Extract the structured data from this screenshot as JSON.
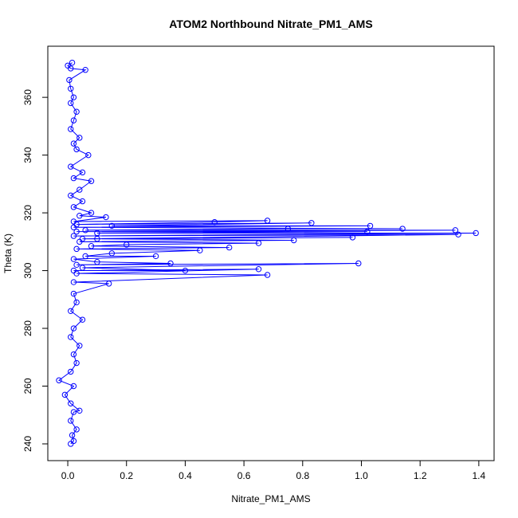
{
  "chart_data": {
    "type": "line",
    "title": "ATOM2 Northbound Nitrate_PM1_AMS",
    "xlabel": "Nitrate_PM1_AMS",
    "ylabel": "Theta (K)",
    "color": "#0000ff",
    "markers": true,
    "xlim": [
      -0.068,
      1.452
    ],
    "ylim": [
      234.2,
      377.7
    ],
    "xticks": [
      {
        "value": 0,
        "label": "0.0"
      },
      0.2,
      0.4,
      0.6,
      0.8,
      {
        "value": 1,
        "label": "1.0"
      },
      1.2,
      1.4
    ],
    "yticks": [
      240,
      260,
      280,
      300,
      320,
      340,
      360
    ],
    "x": [
      0.01,
      0.02,
      0.015,
      0.03,
      0.01,
      0.02,
      0.04,
      0.01,
      -0.01,
      0.02,
      -0.03,
      0.01,
      0.03,
      0.02,
      0.04,
      0.01,
      0.02,
      0.05,
      0.01,
      0.03,
      0.02,
      0.14,
      0.02,
      0.68,
      0.03,
      0.65,
      0.02,
      0.4,
      0.05,
      0.99,
      0.03,
      0.35,
      0.1,
      0.02,
      0.3,
      0.06,
      0.15,
      0.45,
      0.03,
      0.55,
      0.08,
      0.2,
      0.65,
      0.04,
      0.77,
      0.1,
      0.97,
      0.05,
      1.33,
      0.02,
      1.39,
      0.1,
      1.02,
      0.03,
      1.32,
      0.06,
      0.75,
      1.14,
      0.02,
      1.03,
      0.15,
      0.83,
      0.03,
      0.5,
      0.68,
      0.02,
      0.13,
      0.04,
      0.08,
      0.02,
      0.05,
      0.01,
      0.04,
      0.08,
      0.02,
      0.05,
      0.01,
      0.07,
      0.03,
      0.02,
      0.04,
      0.01,
      0.02,
      0.03,
      0.01,
      0.02,
      0.01,
      0.005,
      0.06,
      0.01,
      0,
      0.015
    ],
    "values": [
      240,
      241,
      243,
      245,
      248,
      251,
      251.5,
      254,
      257,
      260,
      262,
      265,
      268,
      271,
      274,
      277,
      280,
      283,
      286,
      289,
      292,
      295.5,
      296,
      298.5,
      299,
      300.5,
      300,
      300,
      301,
      302.5,
      302,
      302.5,
      303,
      304,
      305,
      305,
      306,
      307,
      307.5,
      308,
      308.5,
      309,
      309.5,
      310,
      310.5,
      311,
      311.5,
      311,
      312.5,
      312,
      313,
      313,
      313.5,
      313.5,
      314,
      314,
      314.5,
      314.5,
      315,
      315.5,
      315.5,
      316.5,
      316,
      316.8,
      317.3,
      317,
      318.5,
      319,
      320,
      322,
      324,
      326,
      328,
      331,
      332,
      334,
      336,
      340,
      342,
      344,
      346,
      349,
      352,
      355,
      358,
      360,
      363,
      366,
      369.5,
      370,
      371,
      372
    ]
  }
}
